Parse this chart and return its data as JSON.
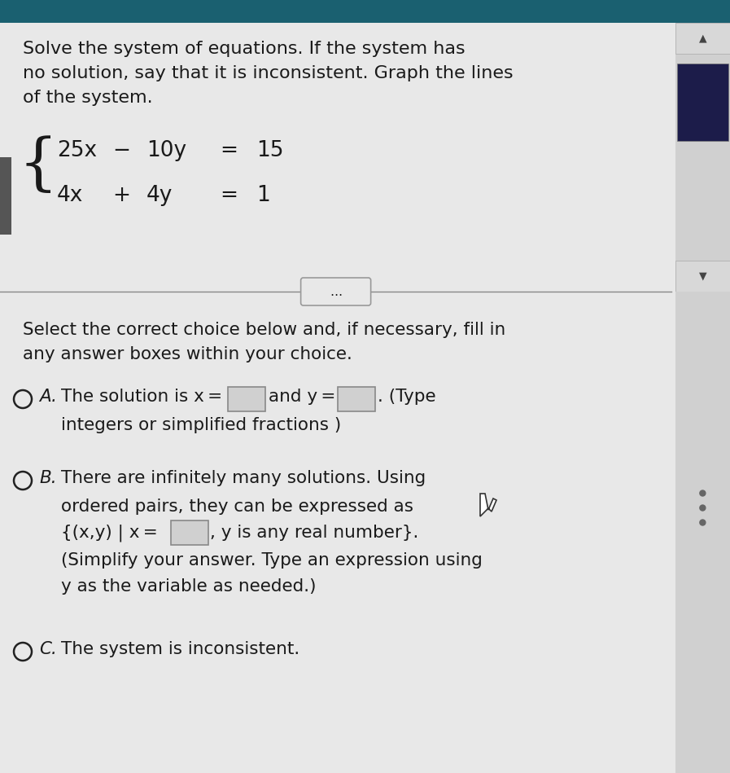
{
  "bg_color": "#e8e8e8",
  "top_bg_color": "#e0e0e0",
  "text_color": "#1a1a1a",
  "title_line1": "Solve the system of equations. If the system has",
  "title_line2": "no solution, say that it is inconsistent. Graph the lines",
  "title_line3": "of the system.",
  "eq1_tokens": [
    "25x",
    " − ",
    "10y",
    " = ",
    "15"
  ],
  "eq2_tokens": [
    "4x",
    " + ",
    "4y",
    " = ",
    "1"
  ],
  "select_line1": "Select the correct choice below and, if necessary, fill in",
  "select_line2": "any answer boxes within your choice.",
  "choiceA_label": "A.",
  "choiceA_text1": "The solution is x =",
  "choiceA_text2": "and y =",
  "choiceA_text3": ". (Type",
  "choiceA_line2": "integers or simplified fractions )",
  "choiceB_label": "B.",
  "choiceB_line1": "There are infinitely many solutions. Using",
  "choiceB_line2": "ordered pairs, they can be expressed as",
  "choiceB_line3a": "{(x,y) | x =",
  "choiceB_line3b": ", y is any real number}.",
  "choiceB_line4": "(Simplify your answer. Type an expression using",
  "choiceB_line5": "y as the variable as needed.)",
  "choiceC_label": "C.",
  "choiceC_text": "The system is inconsistent.",
  "radio_color": "#222222",
  "box_fill": "#d0d0d0",
  "box_edge": "#888888",
  "scrollbar_bg": "#c8c8c8",
  "scroll_thumb_color": "#1c1c4a",
  "divider_color": "#888888",
  "teal_top": "#1a6070",
  "font_size_title": 16,
  "font_size_eq": 19,
  "font_size_body": 15.5
}
